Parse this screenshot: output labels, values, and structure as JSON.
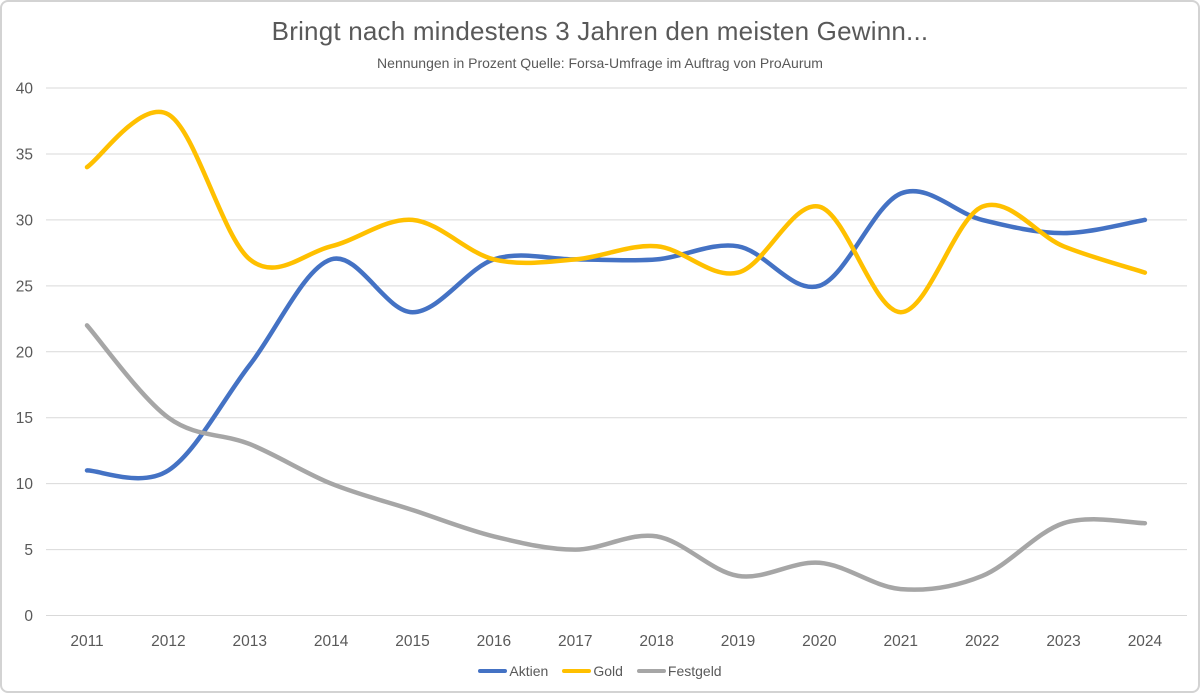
{
  "header": {
    "title": "Bringt nach mindestens 3 Jahren den meisten Gewinn...",
    "subtitle": "Nennungen in Prozent Quelle: Forsa-Umfrage im Auftrag von ProAurum"
  },
  "chart_data": {
    "type": "line",
    "smooth": true,
    "title": "Bringt nach mindestens 3 Jahren den meisten Gewinn...",
    "subtitle": "Nennungen in Prozent Quelle: Forsa-Umfrage im Auftrag von ProAurum",
    "x": [
      2011,
      2012,
      2013,
      2014,
      2015,
      2016,
      2017,
      2018,
      2019,
      2020,
      2021,
      2022,
      2023,
      2024
    ],
    "series": [
      {
        "name": "Aktien",
        "color": "#4472C4",
        "values": [
          11,
          11,
          19,
          27,
          23,
          27,
          27,
          27,
          28,
          25,
          32,
          30,
          29,
          30
        ]
      },
      {
        "name": "Gold",
        "color": "#FFC000",
        "values": [
          34,
          38,
          27,
          28,
          30,
          27,
          27,
          28,
          26,
          31,
          23,
          31,
          28,
          26
        ]
      },
      {
        "name": "Festgeld",
        "color": "#A6A6A6",
        "values": [
          22,
          15,
          13,
          10,
          8,
          6,
          5,
          6,
          3,
          4,
          2,
          3,
          7,
          7
        ]
      }
    ],
    "ylim": [
      0,
      40
    ],
    "yticks": [
      0,
      5,
      10,
      15,
      20,
      25,
      30,
      35,
      40
    ],
    "grid": true,
    "legend_position": "bottom"
  },
  "style": {
    "grid_color": "#D9D9D9",
    "tick_color": "#595959",
    "line_width": 4.5
  }
}
